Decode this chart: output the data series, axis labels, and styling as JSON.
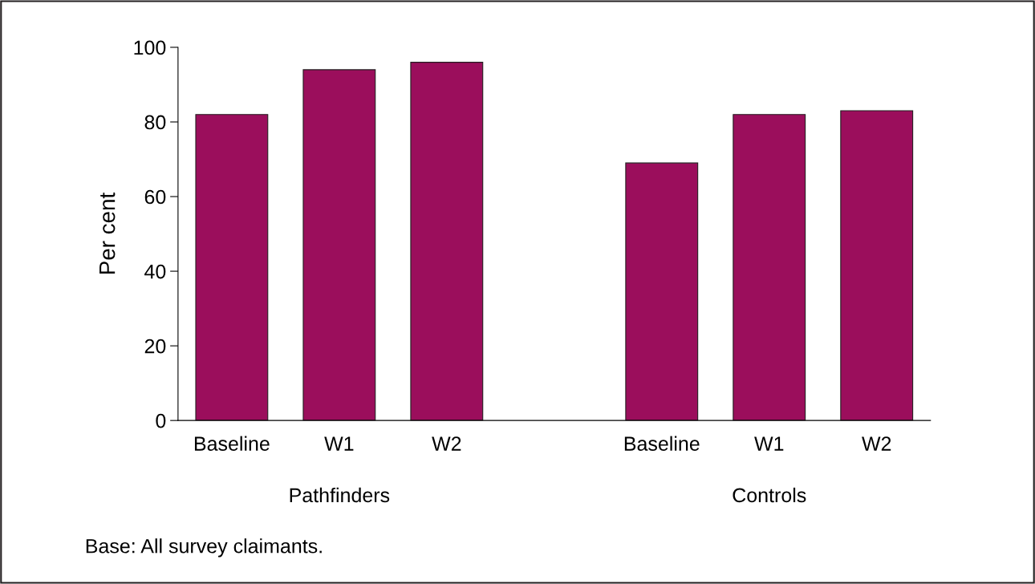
{
  "chart_data": {
    "type": "bar",
    "ylabel": "Per cent",
    "categories": [
      "Baseline",
      "W1",
      "W2",
      null,
      "Baseline",
      "W1",
      "W2"
    ],
    "values": [
      82,
      94,
      96,
      null,
      69,
      82,
      83
    ],
    "color": "#9b0e5c",
    "ylim": [
      0,
      100
    ],
    "yticks": [
      0,
      20,
      40,
      60,
      80,
      100
    ],
    "grid": false,
    "annotations": [
      "Pathfinders",
      "Controls",
      "Base: All survey claimants."
    ]
  }
}
